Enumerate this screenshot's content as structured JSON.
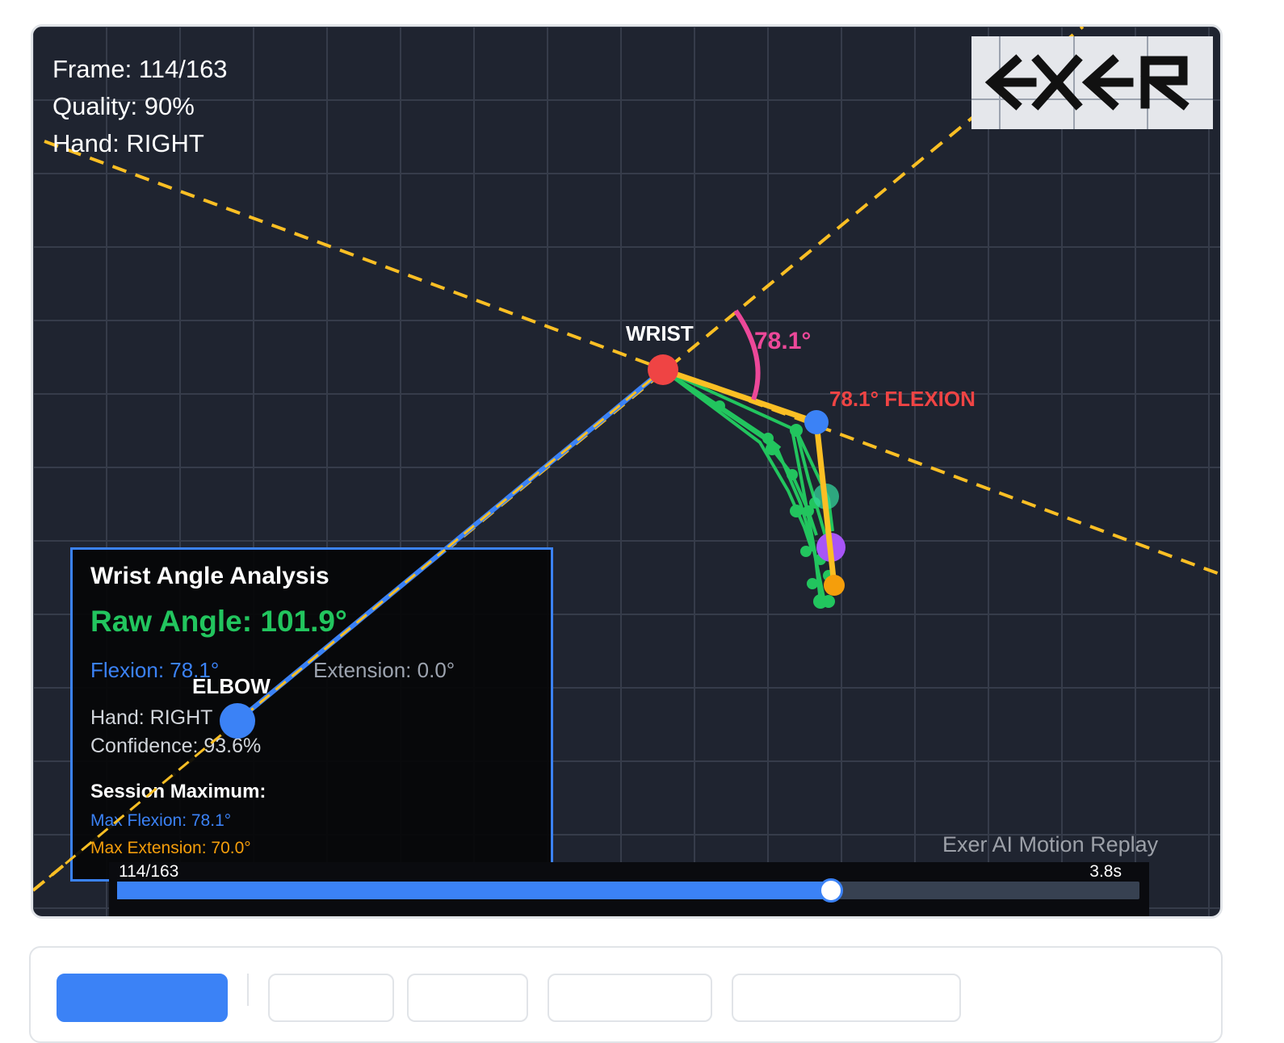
{
  "hud": {
    "frame": "Frame: 114/163",
    "quality": "Quality: 90%",
    "hand": "Hand: RIGHT"
  },
  "logo": {
    "text": "EXER"
  },
  "labels": {
    "wrist": "WRIST",
    "elbow": "ELBOW",
    "angle": "78.1°",
    "flexion_tag": "78.1° FLEXION"
  },
  "panel": {
    "title": "Wrist Angle Analysis",
    "raw_angle": "Raw Angle: 101.9°",
    "flexion": "Flexion: 78.1°",
    "extension": "Extension: 0.0°",
    "hand": "Hand: RIGHT",
    "confidence": "Confidence: 93.6%",
    "session_max_title": "Session Maximum:",
    "max_flexion": "Max Flexion: 78.1°",
    "max_extension": "Max Extension: 70.0°"
  },
  "timeline": {
    "frame_label": "114/163",
    "time_label": "3.8s",
    "progress": 0.698
  },
  "watermark": "Exer AI Motion Replay",
  "colors": {
    "background": "#1f2430",
    "grid": "#363c4a",
    "forearm": "#3b82f6",
    "reference_line": "#fbbf24",
    "wrist_joint": "#ef4444",
    "angle_arc": "#ec4899",
    "flexion_label": "#ef4444",
    "hand_skeleton": "#22c55e",
    "hand_axis": "#fbbf24",
    "timeline_fill": "#3b82f6"
  },
  "controls": {
    "buttons": [
      "",
      "",
      "",
      "",
      ""
    ]
  }
}
